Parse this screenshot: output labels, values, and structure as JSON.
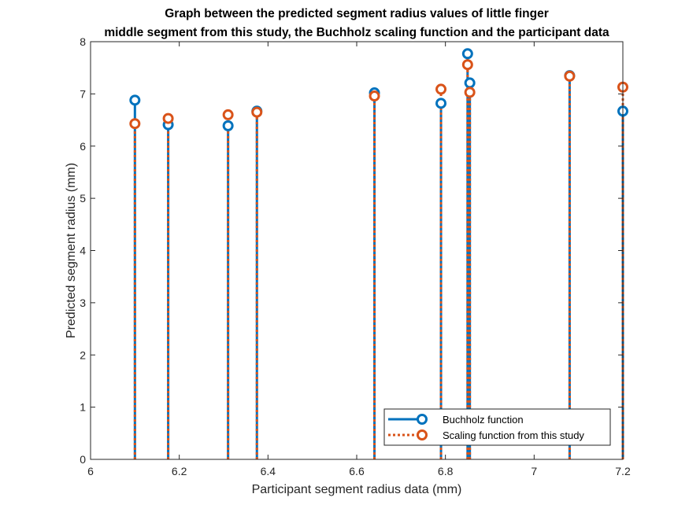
{
  "chart_data": {
    "type": "stem",
    "title_lines": [
      "Graph between the predicted segment radius values of little finger",
      "middle segment from this study, the Buchholz scaling function and the participant data"
    ],
    "xlabel": "Participant segment radius data (mm)",
    "ylabel": "Predicted segment radius (mm)",
    "xlim": [
      6,
      7.2
    ],
    "ylim": [
      0,
      8
    ],
    "xticks": [
      6,
      6.2,
      6.4,
      6.6,
      6.8,
      7,
      7.2
    ],
    "xtick_labels": [
      "6",
      "6.2",
      "6.4",
      "6.6",
      "6.8",
      "7",
      "7.2"
    ],
    "yticks": [
      0,
      1,
      2,
      3,
      4,
      5,
      6,
      7,
      8
    ],
    "ytick_labels": [
      "0",
      "1",
      "2",
      "3",
      "4",
      "5",
      "6",
      "7",
      "8"
    ],
    "grid": false,
    "legend_position": "bottom-right",
    "series": [
      {
        "name": "Buchholz function",
        "color": "#0072BD",
        "line_style": "solid",
        "x": [
          6.1,
          6.175,
          6.31,
          6.375,
          6.64,
          6.79,
          6.85,
          6.855,
          7.08,
          7.2
        ],
        "values": [
          6.88,
          6.41,
          6.39,
          6.67,
          7.02,
          6.82,
          7.77,
          7.21,
          7.35,
          6.67
        ]
      },
      {
        "name": "Scaling function from this study",
        "color": "#D95319",
        "line_style": "dotted",
        "x": [
          6.1,
          6.175,
          6.31,
          6.375,
          6.64,
          6.79,
          6.85,
          6.855,
          7.08,
          7.2
        ],
        "values": [
          6.43,
          6.53,
          6.6,
          6.65,
          6.96,
          7.09,
          7.56,
          7.03,
          7.34,
          7.13
        ]
      }
    ]
  }
}
